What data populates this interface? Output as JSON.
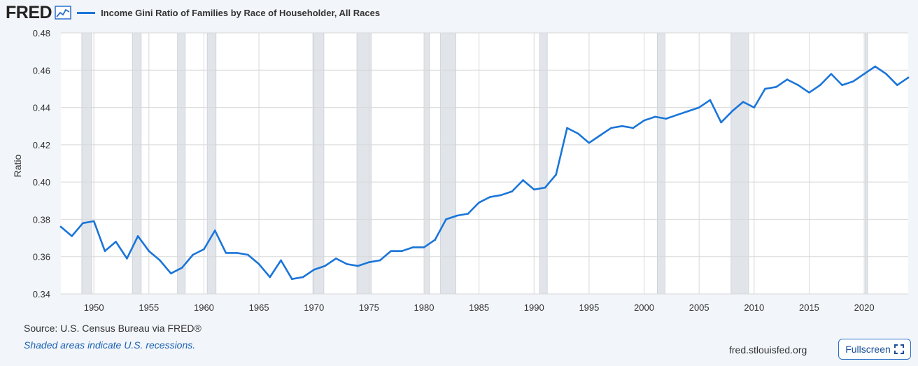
{
  "header": {
    "logo_text": "FRED",
    "logo_icon": "line-chart-icon"
  },
  "footer": {
    "source": "Source: U.S. Census Bureau via FRED®",
    "note": "Shaded areas indicate U.S. recessions.",
    "site": "fred.stlouisfed.org",
    "fullscreen_label": "Fullscreen",
    "fullscreen_icon": "expand-icon"
  },
  "colors": {
    "line": "#1a75d9",
    "recession": "#e1e5ea",
    "grid": "#d8d8d8",
    "background": "#f2f5f9",
    "plot_background": "#ffffff"
  },
  "chart_data": {
    "type": "line",
    "title": "",
    "xlabel": "",
    "ylabel": "Ratio",
    "xlim": [
      1947,
      2024
    ],
    "ylim": [
      0.34,
      0.48
    ],
    "grid": true,
    "legend_placement": "top-left",
    "x_ticks": [
      1950,
      1955,
      1960,
      1965,
      1970,
      1975,
      1980,
      1985,
      1990,
      1995,
      2000,
      2005,
      2010,
      2015,
      2020
    ],
    "y_ticks": [
      "0.34",
      "0.36",
      "0.38",
      "0.40",
      "0.42",
      "0.44",
      "0.46",
      "0.48"
    ],
    "recessions": [
      [
        1948.9,
        1949.8
      ],
      [
        1953.5,
        1954.3
      ],
      [
        1957.6,
        1958.3
      ],
      [
        1960.3,
        1961.1
      ],
      [
        1969.9,
        1970.9
      ],
      [
        1973.9,
        1975.2
      ],
      [
        1980.0,
        1980.5
      ],
      [
        1981.5,
        1982.9
      ],
      [
        1990.5,
        1991.2
      ],
      [
        2001.2,
        2001.9
      ],
      [
        2007.9,
        2009.5
      ],
      [
        2020.1,
        2020.3
      ]
    ],
    "series": [
      {
        "name": "Income Gini Ratio of Families by Race of Householder, All Races",
        "x": [
          1947,
          1948,
          1949,
          1950,
          1951,
          1952,
          1953,
          1954,
          1955,
          1956,
          1957,
          1958,
          1959,
          1960,
          1961,
          1962,
          1963,
          1964,
          1965,
          1966,
          1967,
          1968,
          1969,
          1970,
          1971,
          1972,
          1973,
          1974,
          1975,
          1976,
          1977,
          1978,
          1979,
          1980,
          1981,
          1982,
          1983,
          1984,
          1985,
          1986,
          1987,
          1988,
          1989,
          1990,
          1991,
          1992,
          1993,
          1994,
          1995,
          1996,
          1997,
          1998,
          1999,
          2000,
          2001,
          2002,
          2003,
          2004,
          2005,
          2006,
          2007,
          2008,
          2009,
          2010,
          2011,
          2012,
          2013,
          2014,
          2015,
          2016,
          2017,
          2018,
          2019,
          2020,
          2021,
          2022,
          2023,
          2024
        ],
        "values": [
          0.376,
          0.371,
          0.378,
          0.379,
          0.363,
          0.368,
          0.359,
          0.371,
          0.363,
          0.358,
          0.351,
          0.354,
          0.361,
          0.364,
          0.374,
          0.362,
          0.362,
          0.361,
          0.356,
          0.349,
          0.358,
          0.348,
          0.349,
          0.353,
          0.355,
          0.359,
          0.356,
          0.355,
          0.357,
          0.358,
          0.363,
          0.363,
          0.365,
          0.365,
          0.369,
          0.38,
          0.382,
          0.383,
          0.389,
          0.392,
          0.393,
          0.395,
          0.401,
          0.396,
          0.397,
          0.404,
          0.429,
          0.426,
          0.421,
          0.425,
          0.429,
          0.43,
          0.429,
          0.433,
          0.435,
          0.434,
          0.436,
          0.438,
          0.44,
          0.444,
          0.432,
          0.438,
          0.443,
          0.44,
          0.45,
          0.451,
          0.455,
          0.452,
          0.448,
          0.452,
          0.458,
          0.452,
          0.454,
          0.458,
          0.462,
          0.458,
          0.452,
          0.456
        ]
      }
    ]
  }
}
